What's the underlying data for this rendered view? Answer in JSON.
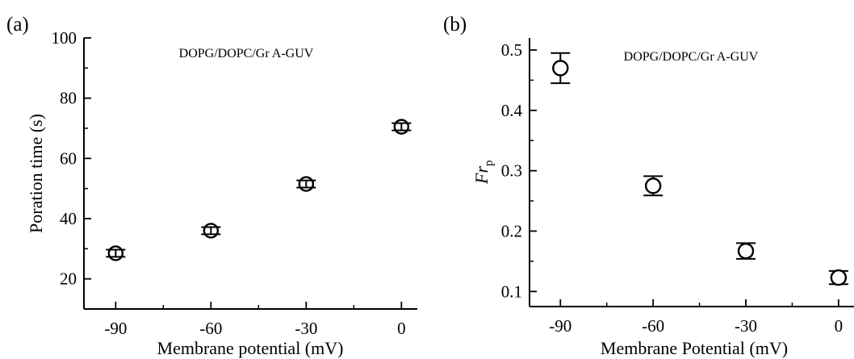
{
  "chart_data": [
    {
      "panel_label": "(a)",
      "type": "scatter",
      "annotation": "DOPG/DOPC/Gr A-GUV",
      "xlabel": "Membrane potential (mV)",
      "ylabel": "Poration time (s)",
      "xlim": [
        -100,
        5
      ],
      "ylim": [
        10,
        100
      ],
      "xticks": [
        -90,
        -60,
        -30,
        0
      ],
      "yticks": [
        20,
        40,
        60,
        80,
        100
      ],
      "x": [
        -90,
        -60,
        -30,
        0
      ],
      "y": [
        28.5,
        36,
        51.5,
        70.5
      ],
      "yerr": [
        1.2,
        1.2,
        1.2,
        1.2
      ]
    },
    {
      "panel_label": "(b)",
      "type": "scatter",
      "annotation": "DOPG/DOPC/Gr A-GUV",
      "xlabel": "Membrane Potential (mV)",
      "ylabel_main": "Fr",
      "ylabel_sub": "p",
      "xlim": [
        -100,
        5
      ],
      "ylim": [
        0.075,
        0.52
      ],
      "xticks": [
        -90,
        -60,
        -30,
        0
      ],
      "yticks": [
        0.1,
        0.2,
        0.3,
        0.4,
        0.5
      ],
      "x": [
        -90,
        -60,
        -30,
        0
      ],
      "y": [
        0.47,
        0.275,
        0.167,
        0.123
      ],
      "yerr": [
        0.025,
        0.016,
        0.013,
        0.011
      ]
    }
  ]
}
